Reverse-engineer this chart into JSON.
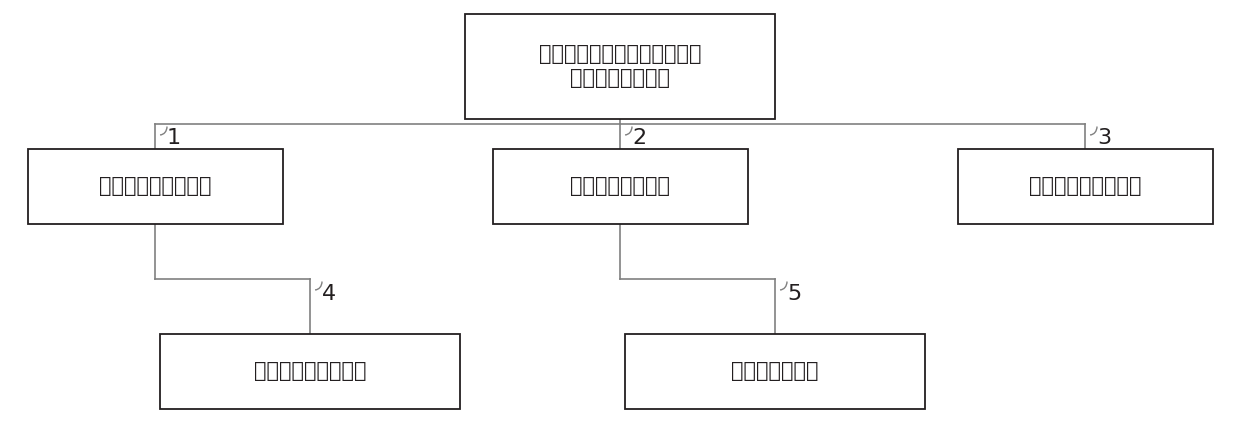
{
  "top_text": "针对大气环境影响的机场停机\n位优先级分析系统",
  "box1_text": "第一次分区划分模块",
  "box2_text": "滑行时间分析模块",
  "box3_text": "污染物浓度获取模块",
  "box4_text": "第二次分区划分模块",
  "box5_text": "优先级指导模块",
  "bg_color": "#ffffff",
  "box_edge_color": "#231f20",
  "line_color": "#808080",
  "text_color": "#231f20",
  "label_color": "#231f20",
  "font_size": 15,
  "label_font_size": 16
}
